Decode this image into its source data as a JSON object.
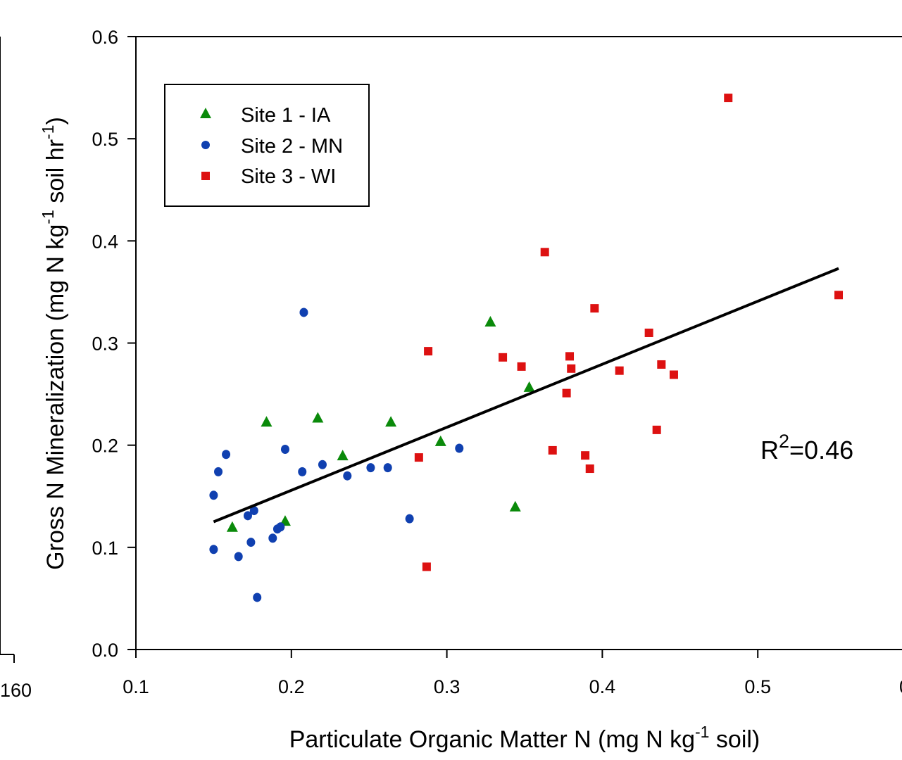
{
  "chart_data": {
    "type": "scatter",
    "xlabel": {
      "main": "Particulate Organic Matter N (mg N kg",
      "sup": "-1",
      "tail": " soil)"
    },
    "ylabel": {
      "main": "Gross N Mineralization (mg N kg",
      "sup1": "-1",
      "mid": " soil hr",
      "sup2": "-1",
      "tail": ")"
    },
    "xlim": [
      0.1,
      0.6
    ],
    "ylim": [
      0.0,
      0.6
    ],
    "x_ticks": [
      0.1,
      0.2,
      0.3,
      0.4,
      0.5
    ],
    "x_tick_labels": [
      "0.1",
      "0.2",
      "0.3",
      "0.4",
      "0.5"
    ],
    "y_ticks": [
      0.0,
      0.1,
      0.2,
      0.3,
      0.4,
      0.5,
      0.6
    ],
    "y_tick_labels": [
      "0.0",
      "0.1",
      "0.2",
      "0.3",
      "0.4",
      "0.5",
      "0.6"
    ],
    "grid": false,
    "legend_position": "top-left",
    "series": [
      {
        "name": "Site 1 - IA",
        "marker": "triangle",
        "color": "#0a8a0a",
        "x": [
          0.162,
          0.184,
          0.196,
          0.217,
          0.233,
          0.264,
          0.296,
          0.328,
          0.344,
          0.353
        ],
        "y": [
          0.12,
          0.223,
          0.126,
          0.227,
          0.19,
          0.223,
          0.204,
          0.321,
          0.14,
          0.257
        ]
      },
      {
        "name": "Site 2 - MN",
        "marker": "circle",
        "color": "#1040b0",
        "x": [
          0.15,
          0.15,
          0.153,
          0.158,
          0.166,
          0.172,
          0.174,
          0.176,
          0.178,
          0.188,
          0.191,
          0.193,
          0.196,
          0.207,
          0.208,
          0.22,
          0.236,
          0.251,
          0.262,
          0.276,
          0.308
        ],
        "y": [
          0.151,
          0.098,
          0.174,
          0.191,
          0.091,
          0.131,
          0.105,
          0.136,
          0.051,
          0.109,
          0.118,
          0.12,
          0.196,
          0.174,
          0.33,
          0.181,
          0.17,
          0.178,
          0.178,
          0.128,
          0.197
        ]
      },
      {
        "name": "Site 3 - WI",
        "marker": "square",
        "color": "#dd1111",
        "x": [
          0.282,
          0.287,
          0.288,
          0.336,
          0.348,
          0.363,
          0.368,
          0.377,
          0.379,
          0.38,
          0.389,
          0.392,
          0.395,
          0.411,
          0.43,
          0.435,
          0.438,
          0.446,
          0.481,
          0.552
        ],
        "y": [
          0.188,
          0.081,
          0.292,
          0.286,
          0.277,
          0.389,
          0.195,
          0.251,
          0.287,
          0.275,
          0.19,
          0.177,
          0.334,
          0.273,
          0.31,
          0.215,
          0.279,
          0.269,
          0.54,
          0.347
        ]
      }
    ],
    "regression_line": {
      "x": [
        0.15,
        0.552
      ],
      "y": [
        0.125,
        0.373
      ],
      "color": "#000000"
    },
    "annotation": {
      "base": "R",
      "sup": "2",
      "rest": "=0.46"
    },
    "left_partial": {
      "tick_label": "160"
    },
    "right_partial": {
      "tick_label": "0"
    }
  }
}
